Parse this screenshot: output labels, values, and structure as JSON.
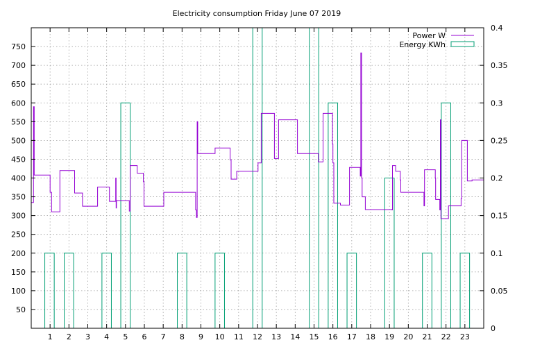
{
  "chart_data": {
    "type": "line",
    "title": "Electricity consumption Friday June 07 2019",
    "xlabel": "",
    "ylabel": "",
    "y2label": "",
    "xlim": [
      0,
      24
    ],
    "ylim": [
      0,
      800
    ],
    "y2lim": [
      0,
      0.4
    ],
    "x_ticks": [
      1,
      2,
      3,
      4,
      5,
      6,
      7,
      8,
      9,
      10,
      11,
      12,
      13,
      14,
      15,
      16,
      17,
      18,
      19,
      20,
      21,
      22,
      23
    ],
    "y_ticks": [
      50,
      100,
      150,
      200,
      250,
      300,
      350,
      400,
      450,
      500,
      550,
      600,
      650,
      700,
      750
    ],
    "y2_ticks": [
      0,
      0.05,
      0.1,
      0.15,
      0.2,
      0.25,
      0.3,
      0.35,
      0.4
    ],
    "grid": true,
    "legend_position": "top-right",
    "colors": {
      "power": "#9400d3",
      "energy": "#009e73"
    },
    "series": [
      {
        "name": "Power W",
        "axis": "left",
        "style": "step-line",
        "points": [
          [
            0,
            335
          ],
          [
            0.08,
            335
          ],
          [
            0.12,
            590
          ],
          [
            0.16,
            408
          ],
          [
            0.98,
            408
          ],
          [
            1.0,
            362
          ],
          [
            1.08,
            310
          ],
          [
            1.48,
            310
          ],
          [
            1.52,
            420
          ],
          [
            2.25,
            420
          ],
          [
            2.3,
            360
          ],
          [
            2.7,
            360
          ],
          [
            2.72,
            325
          ],
          [
            3.5,
            325
          ],
          [
            3.52,
            376
          ],
          [
            4.12,
            376
          ],
          [
            4.15,
            338
          ],
          [
            4.45,
            338
          ],
          [
            4.48,
            400
          ],
          [
            4.5,
            320
          ],
          [
            4.52,
            340
          ],
          [
            5.18,
            340
          ],
          [
            5.2,
            312
          ],
          [
            5.25,
            433
          ],
          [
            5.6,
            433
          ],
          [
            5.62,
            413
          ],
          [
            5.9,
            413
          ],
          [
            5.95,
            390
          ],
          [
            5.98,
            325
          ],
          [
            7.0,
            325
          ],
          [
            7.03,
            362
          ],
          [
            8.68,
            362
          ],
          [
            8.72,
            315
          ],
          [
            8.76,
            295
          ],
          [
            8.8,
            550
          ],
          [
            8.83,
            465
          ],
          [
            9.72,
            465
          ],
          [
            9.75,
            480
          ],
          [
            10.5,
            480
          ],
          [
            10.55,
            448
          ],
          [
            10.6,
            397
          ],
          [
            10.85,
            397
          ],
          [
            10.9,
            418
          ],
          [
            12.0,
            418
          ],
          [
            12.03,
            440
          ],
          [
            12.15,
            440
          ],
          [
            12.2,
            572
          ],
          [
            12.85,
            572
          ],
          [
            12.9,
            452
          ],
          [
            13.1,
            452
          ],
          [
            13.12,
            555
          ],
          [
            14.1,
            555
          ],
          [
            14.12,
            465
          ],
          [
            15.2,
            465
          ],
          [
            15.23,
            443
          ],
          [
            15.45,
            443
          ],
          [
            15.48,
            572
          ],
          [
            15.95,
            572
          ],
          [
            15.98,
            490
          ],
          [
            16.0,
            440
          ],
          [
            16.05,
            333
          ],
          [
            16.35,
            333
          ],
          [
            16.4,
            328
          ],
          [
            16.85,
            328
          ],
          [
            16.88,
            428
          ],
          [
            17.4,
            428
          ],
          [
            17.45,
            405
          ],
          [
            17.48,
            733
          ],
          [
            17.52,
            400
          ],
          [
            17.55,
            350
          ],
          [
            17.7,
            350
          ],
          [
            17.72,
            316
          ],
          [
            19.1,
            316
          ],
          [
            19.13,
            315
          ],
          [
            19.16,
            433
          ],
          [
            19.3,
            433
          ],
          [
            19.33,
            418
          ],
          [
            19.55,
            418
          ],
          [
            19.57,
            395
          ],
          [
            19.6,
            362
          ],
          [
            20.8,
            362
          ],
          [
            20.83,
            326
          ],
          [
            20.86,
            422
          ],
          [
            21.4,
            422
          ],
          [
            21.43,
            400
          ],
          [
            21.45,
            343
          ],
          [
            21.65,
            343
          ],
          [
            21.67,
            315
          ],
          [
            21.7,
            555
          ],
          [
            21.73,
            292
          ],
          [
            22.1,
            292
          ],
          [
            22.13,
            326
          ],
          [
            22.75,
            326
          ],
          [
            22.8,
            345
          ],
          [
            22.83,
            500
          ],
          [
            23.1,
            500
          ],
          [
            23.13,
            392
          ],
          [
            23.35,
            392
          ],
          [
            23.38,
            395
          ],
          [
            24,
            395
          ]
        ]
      },
      {
        "name": "Energy KWh",
        "axis": "right",
        "style": "boxes",
        "boxes": [
          [
            0.72,
            1.22,
            0.1
          ],
          [
            1.75,
            2.25,
            0.1
          ],
          [
            3.75,
            4.25,
            0.1
          ],
          [
            4.75,
            5.25,
            0.3
          ],
          [
            7.75,
            8.25,
            0.1
          ],
          [
            9.75,
            10.25,
            0.1
          ],
          [
            11.75,
            12.25,
            0.4
          ],
          [
            14.75,
            15.25,
            0.4
          ],
          [
            15.75,
            16.25,
            0.3
          ],
          [
            16.75,
            17.25,
            0.1
          ],
          [
            18.75,
            19.25,
            0.2
          ],
          [
            20.75,
            21.25,
            0.1
          ],
          [
            21.75,
            22.25,
            0.3
          ],
          [
            22.75,
            23.25,
            0.1
          ]
        ]
      }
    ]
  }
}
